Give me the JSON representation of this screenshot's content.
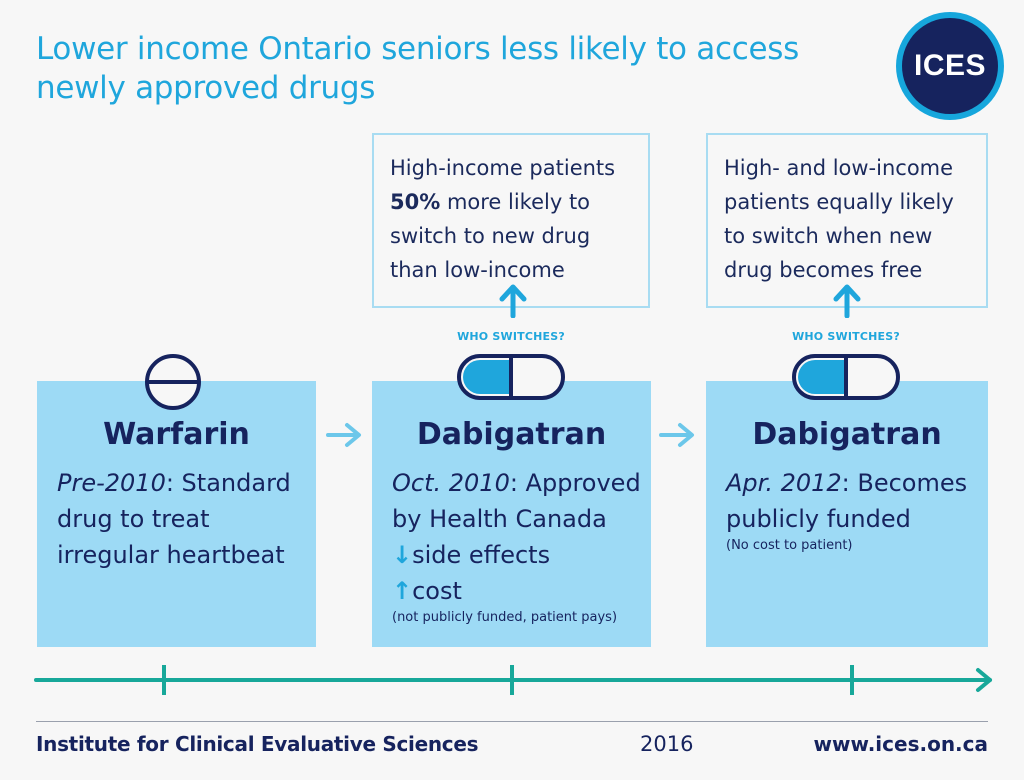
{
  "title": "Lower income Ontario seniors less likely to access newly approved drugs",
  "logo": {
    "text": "ICES"
  },
  "callouts": [
    {
      "line1": "High-income patients",
      "highlight": "50%",
      "line2_rest": " more likely to",
      "line3": "switch to new drug",
      "line4": "than low-income"
    },
    {
      "line1": "High- and low-income",
      "line2": "patients equally likely",
      "line3": "to switch when new",
      "line4": "drug becomes free"
    }
  ],
  "who_switches": "WHO SWITCHES?",
  "panels": [
    {
      "name": "Warfarin",
      "date": "Pre-2010",
      "desc_line1": ": Standard",
      "desc_line2": "drug to treat",
      "desc_line3": "irregular heartbeat"
    },
    {
      "name": "Dabigatran",
      "date": "Oct. 2010",
      "desc_line1": ": Approved",
      "desc_line2": "by Health Canada",
      "down_arrow": "↓",
      "side_effects": "side effects",
      "up_arrow": "↑",
      "cost": "cost",
      "note": "(not publicly funded, patient pays)"
    },
    {
      "name": "Dabigatran",
      "date": "Apr. 2012",
      "desc_line1": ": Becomes",
      "desc_line2": "publicly funded",
      "note": "(No cost to patient)"
    }
  ],
  "colors": {
    "title_blue": "#1fa6dc",
    "navy": "#16235e",
    "panel_blue": "#9ddaf5",
    "teal": "#18a89a"
  },
  "footer": {
    "org": "Institute for Clinical Evaluative Sciences",
    "year": "2016",
    "url": "www.ices.on.ca"
  }
}
